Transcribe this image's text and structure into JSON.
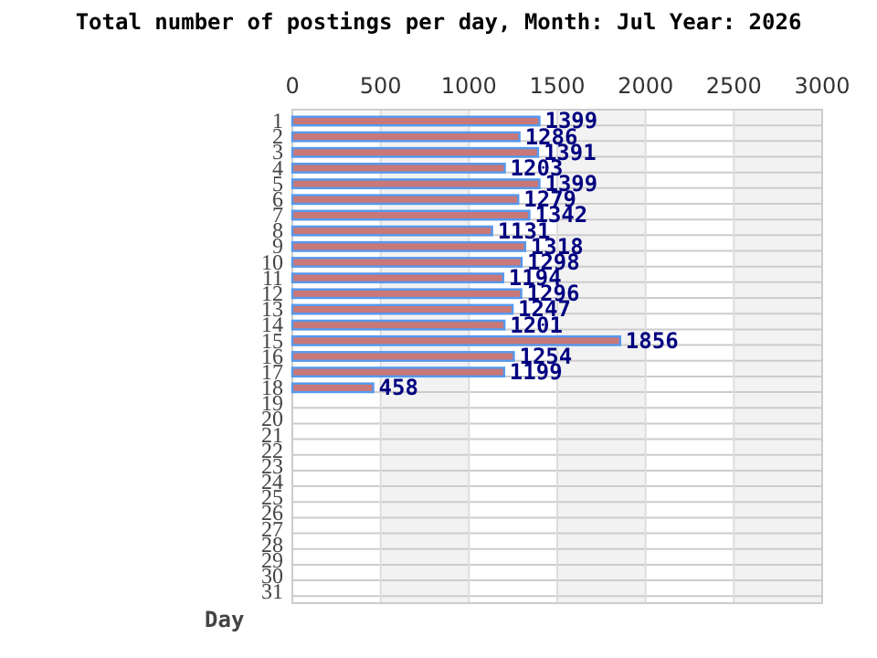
{
  "chart_data": {
    "type": "bar",
    "orientation": "horizontal",
    "title": "Total number of postings per day, Month: Jul  Year: 2026",
    "ylabel": "Day",
    "categories": [
      "1",
      "2",
      "3",
      "4",
      "5",
      "6",
      "7",
      "8",
      "9",
      "10",
      "11",
      "12",
      "13",
      "14",
      "15",
      "16",
      "17",
      "18",
      "19",
      "20",
      "21",
      "22",
      "23",
      "24",
      "25",
      "26",
      "27",
      "28",
      "29",
      "30",
      "31"
    ],
    "values": [
      1399,
      1286,
      1391,
      1203,
      1399,
      1279,
      1342,
      1131,
      1318,
      1298,
      1194,
      1296,
      1247,
      1201,
      1856,
      1254,
      1199,
      458,
      null,
      null,
      null,
      null,
      null,
      null,
      null,
      null,
      null,
      null,
      null,
      null,
      null
    ],
    "color": "#c87878",
    "xlim": [
      0,
      3000
    ],
    "xticks": [
      0,
      500,
      1000,
      1500,
      2000,
      2500,
      3000
    ],
    "grid": true,
    "data_labels": true
  }
}
